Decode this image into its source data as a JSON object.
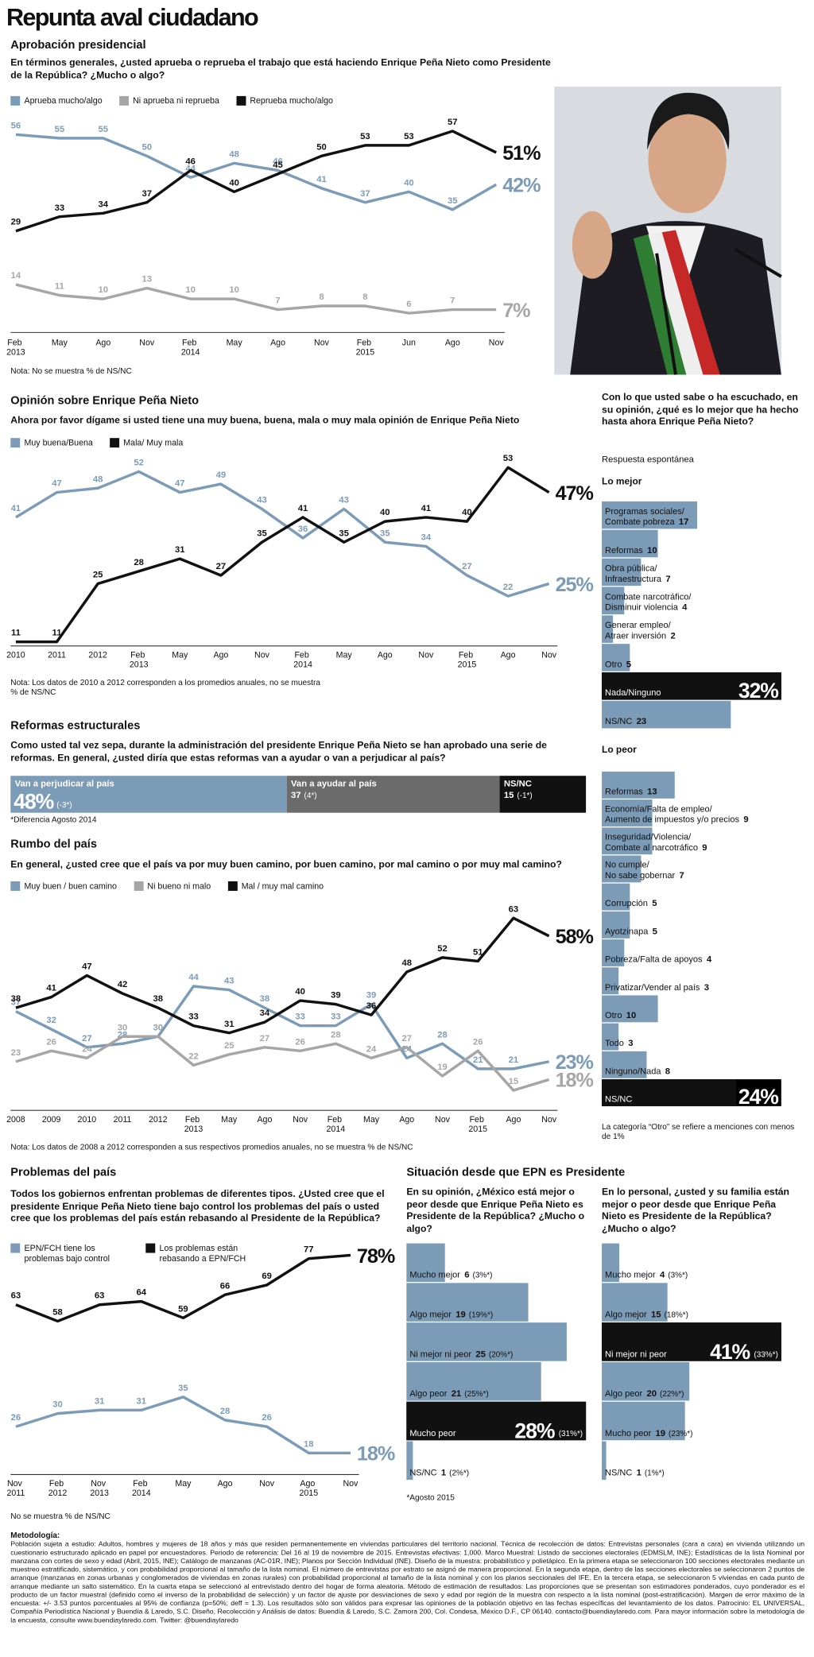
{
  "title": "Repunta aval ciudadano",
  "chart_data": [
    {
      "type": "line",
      "title": "Aprobación presidencial",
      "question": "En términos generales, ¿usted aprueba o reprueba el trabajo que está haciendo Enrique Peña Nieto como Presidente de la República? ¿Mucho o algo?",
      "categories": [
        "Feb 2013",
        "May",
        "Ago",
        "Nov",
        "Feb 2014",
        "May",
        "Ago",
        "Nov",
        "Feb 2015",
        "Jun",
        "Ago",
        "Nov"
      ],
      "series": [
        {
          "name": "Aprueba mucho/algo",
          "color": "#7b9bb7",
          "values": [
            56,
            55,
            55,
            50,
            44,
            48,
            46,
            41,
            37,
            40,
            35,
            42
          ],
          "value_labels": [
            null,
            null,
            null,
            null,
            null,
            null,
            null,
            null,
            null,
            null,
            null,
            "42%"
          ]
        },
        {
          "name": "Ni aprueba ni reprueba",
          "color": "#a6a6a6",
          "values": [
            14,
            11,
            10,
            13,
            10,
            10,
            7,
            8,
            8,
            6,
            7,
            7
          ],
          "value_labels": [
            null,
            null,
            null,
            null,
            null,
            null,
            null,
            null,
            null,
            null,
            null,
            "7%"
          ]
        },
        {
          "name": "Reprueba mucho/algo",
          "color": "#111111",
          "values": [
            29,
            33,
            34,
            37,
            46,
            40,
            45,
            50,
            53,
            53,
            57,
            51
          ],
          "value_labels": [
            null,
            null,
            null,
            null,
            null,
            null,
            null,
            null,
            null,
            null,
            null,
            "51%"
          ]
        }
      ],
      "ylim": [
        0,
        60
      ],
      "note": "Nota: No se muestra % de NS/NC"
    },
    {
      "type": "line",
      "title": "Opinión sobre Enrique Peña Nieto",
      "question": "Ahora por favor dígame si usted tiene una muy buena, buena, mala o muy mala opinión de Enrique Peña Nieto",
      "categories": [
        "2010",
        "2011",
        "2012",
        "Feb 2013",
        "May",
        "Ago",
        "Nov",
        "Feb 2014",
        "May",
        "Ago",
        "Nov",
        "Feb 2015",
        "Ago",
        "Nov"
      ],
      "series": [
        {
          "name": "Muy buena/Buena",
          "color": "#7b9bb7",
          "values": [
            41,
            47,
            48,
            52,
            47,
            49,
            43,
            36,
            43,
            35,
            34,
            27,
            22,
            25
          ],
          "value_labels": [
            null,
            null,
            null,
            null,
            null,
            null,
            null,
            null,
            null,
            null,
            null,
            null,
            null,
            "25%"
          ]
        },
        {
          "name": "Mala/ Muy mala",
          "color": "#111111",
          "values": [
            11,
            11,
            25,
            28,
            31,
            27,
            35,
            41,
            35,
            40,
            41,
            40,
            53,
            47
          ],
          "value_labels": [
            null,
            null,
            null,
            null,
            null,
            null,
            null,
            null,
            null,
            null,
            null,
            null,
            null,
            "47%"
          ]
        }
      ],
      "ylim": [
        10,
        55
      ],
      "note": "Nota: Los datos de 2010 a 2012 corresponden a los promedios anuales, no se muestra % de NS/NC"
    },
    {
      "type": "stacked-bar",
      "title": "Reformas estructurales",
      "question": "Como usted tal vez sepa, durante la administración del presidente Enrique Peña Nieto se han aprobado una serie de reformas. En general, ¿usted diría que estas reformas van a ayudar o van a perjudicar al país?",
      "series": [
        {
          "name": "Van a perjudicar al país",
          "color": "#7b9bb7",
          "values": [
            48
          ],
          "value_labels": [
            "48%"
          ],
          "changes": [
            "(-3*)"
          ]
        },
        {
          "name": "Van a ayudar al país",
          "color": "#6b6b6b",
          "values": [
            37
          ],
          "changes": [
            "(4*)"
          ]
        },
        {
          "name": "NS/NC",
          "color": "#111111",
          "values": [
            15
          ],
          "changes": [
            "(-1*)"
          ]
        }
      ],
      "xlim": [
        0,
        100
      ],
      "note": "*Diferencia Agosto 2014"
    },
    {
      "type": "line",
      "title": "Rumbo del país",
      "question": "En general, ¿usted cree que el país va por muy buen camino, por buen camino, por mal camino o por muy mal camino?",
      "categories": [
        "2008",
        "2009",
        "2010",
        "2011",
        "2012",
        "Feb 2013",
        "May",
        "Ago",
        "Nov",
        "Feb 2014",
        "May",
        "Ago",
        "Nov",
        "Feb 2015",
        "Ago",
        "Nov"
      ],
      "series": [
        {
          "name": "Muy buen / buen camino",
          "color": "#7b9bb7",
          "values": [
            37,
            32,
            27,
            28,
            30,
            44,
            43,
            38,
            33,
            33,
            39,
            24,
            28,
            21,
            21,
            23
          ],
          "value_labels": [
            null,
            null,
            null,
            null,
            null,
            null,
            null,
            null,
            null,
            null,
            null,
            null,
            null,
            null,
            null,
            "23%"
          ]
        },
        {
          "name": "Ni bueno ni malo",
          "color": "#a6a6a6",
          "values": [
            23,
            26,
            24,
            30,
            30,
            22,
            25,
            27,
            26,
            28,
            24,
            27,
            19,
            26,
            15,
            18
          ],
          "value_labels": [
            null,
            null,
            null,
            null,
            null,
            null,
            null,
            null,
            null,
            null,
            null,
            null,
            null,
            null,
            null,
            "18%"
          ]
        },
        {
          "name": "Mal / muy mal camino",
          "color": "#111111",
          "values": [
            38,
            41,
            47,
            42,
            38,
            33,
            31,
            34,
            40,
            39,
            36,
            48,
            52,
            51,
            63,
            58
          ],
          "value_labels": [
            null,
            null,
            null,
            null,
            null,
            null,
            null,
            null,
            null,
            null,
            null,
            null,
            null,
            null,
            null,
            "58%"
          ]
        }
      ],
      "ylim": [
        10,
        65
      ],
      "note": "Nota: Los datos de 2008 a 2012 corresponden a sus respectivos promedios anuales, no se muestra % de NS/NC"
    },
    {
      "type": "line",
      "title": "Problemas del país",
      "question": "Todos los gobiernos enfrentan problemas de diferentes tipos. ¿Usted cree que el presidente Enrique Peña Nieto tiene bajo control los problemas del país o usted cree que los problemas del país están rebasando al Presidente de la República?",
      "categories": [
        "Nov 2011",
        "Feb 2012",
        "Nov 2013",
        "Feb 2014",
        "May",
        "Ago",
        "Nov",
        "Ago 2015",
        "Nov"
      ],
      "series": [
        {
          "name": "EPN/FCH tiene los problemas bajo control",
          "color": "#7b9bb7",
          "values": [
            26,
            30,
            31,
            31,
            35,
            28,
            26,
            18,
            18
          ],
          "value_labels": [
            null,
            null,
            null,
            null,
            null,
            null,
            null,
            null,
            "18%"
          ]
        },
        {
          "name": "Los problemas están rebasando a EPN/FCH",
          "color": "#111111",
          "values": [
            63,
            58,
            63,
            64,
            59,
            66,
            69,
            77,
            78
          ],
          "value_labels": [
            null,
            null,
            null,
            null,
            null,
            null,
            null,
            null,
            "78%"
          ]
        }
      ],
      "ylim": [
        15,
        80
      ],
      "note": "No se muestra % de NS/NC"
    },
    {
      "type": "hbar",
      "question": "Con lo que usted sabe o ha escuchado, en su opinión, ¿qué es lo mejor que ha hecho hasta ahora Enrique Peña Nieto?",
      "subtitle": "Respuesta espontánea",
      "title": "Lo mejor",
      "categories": [
        "Programas sociales/ Combate pobreza",
        "Reformas",
        "Obra pública/ Infraestructura",
        "Combate narcotráfico/ Disminuir violencia",
        "Generar empleo/ Atraer inversión",
        "Otro",
        "Nada/Ninguno",
        "NS/NC"
      ],
      "values": [
        17,
        10,
        7,
        4,
        2,
        5,
        32,
        23
      ],
      "value_labels": [
        null,
        null,
        null,
        null,
        null,
        null,
        "32%",
        null
      ],
      "colors": [
        "#7b9bb7",
        "#7b9bb7",
        "#7b9bb7",
        "#7b9bb7",
        "#7b9bb7",
        "#7b9bb7",
        "#111111",
        "#7b9bb7"
      ],
      "xlim": [
        0,
        32
      ]
    },
    {
      "type": "hbar",
      "title": "Lo peor",
      "categories": [
        "Reformas",
        "Economía/Falta de empleo/ Aumento de impuestos y/o precios",
        "Inseguridad/Violencia/ Combate al narcotráfico",
        "No cumple/ No sabe gobernar",
        "Corrupción",
        "Ayotzinapa",
        "Pobreza/Falta de apoyos",
        "Privatizar/Vender al país",
        "Otro",
        "Todo",
        "Ninguno/Nada",
        "NS/NC"
      ],
      "values": [
        13,
        9,
        9,
        7,
        5,
        5,
        4,
        3,
        10,
        3,
        8,
        24
      ],
      "value_labels": [
        null,
        null,
        null,
        null,
        null,
        null,
        null,
        null,
        null,
        null,
        null,
        "24%"
      ],
      "colors": [
        "#7b9bb7",
        "#7b9bb7",
        "#7b9bb7",
        "#7b9bb7",
        "#7b9bb7",
        "#7b9bb7",
        "#7b9bb7",
        "#7b9bb7",
        "#7b9bb7",
        "#7b9bb7",
        "#7b9bb7",
        "#111111"
      ],
      "xlim": [
        0,
        32
      ],
      "note": "La categoría “Otro” se refiere a menciones con menos de 1%"
    },
    {
      "type": "hbar",
      "supertitle": "Situación desde que EPN es Presidente",
      "question": "En su opinión, ¿México está mejor o peor desde que Enrique Peña Nieto es Presidente de la República? ¿Mucho o algo?",
      "categories": [
        "Mucho mejor",
        "Algo mejor",
        "Ni mejor ni peor",
        "Algo peor",
        "Mucho peor",
        "NS/NC"
      ],
      "values": [
        6,
        19,
        25,
        21,
        28,
        1
      ],
      "value_labels": [
        null,
        null,
        null,
        null,
        "28%",
        null
      ],
      "changes": [
        "(3%*)",
        "(19%*)",
        "(20%*)",
        "(25%*)",
        "(31%*)",
        "(2%*)"
      ],
      "colors": [
        "#7b9bb7",
        "#7b9bb7",
        "#7b9bb7",
        "#7b9bb7",
        "#111111",
        "#7b9bb7"
      ],
      "xlim": [
        0,
        28
      ],
      "note": "*Agosto 2015"
    },
    {
      "type": "hbar",
      "question": "En lo personal, ¿usted y su familia están mejor o peor desde que Enrique Peña Nieto es Presidente de la República? ¿Mucho o algo?",
      "categories": [
        "Mucho mejor",
        "Algo mejor",
        "Ni mejor ni peor",
        "Algo peor",
        "Mucho peor",
        "NS/NC"
      ],
      "values": [
        4,
        15,
        41,
        20,
        19,
        1
      ],
      "value_labels": [
        null,
        null,
        "41%",
        null,
        null,
        null
      ],
      "changes": [
        "(3%*)",
        "(18%*)",
        "(33%*)",
        "(22%*)",
        "(23%*)",
        "(1%*)"
      ],
      "colors": [
        "#7b9bb7",
        "#7b9bb7",
        "#111111",
        "#7b9bb7",
        "#7b9bb7",
        "#7b9bb7"
      ],
      "xlim": [
        0,
        41
      ]
    }
  ],
  "methodology": {
    "heading": "Metodología:",
    "text": "Población sujeta a estudio: Adultos, hombres y mujeres de 18 años y más que residen permanentemente en viviendas particulares del territorio nacional. Técnica de recolección de datos: Entrevistas personales (cara a cara) en vivienda utilizando un cuestionario estructurado aplicado en papel por encuestadores. Periodo de referencia: Del 16 al 19 de noviembre de 2015. Entrevistas efectivas: 1,000. Marco Muestral: Listado de secciones electorales (EDMSLM, INE); Estadísticas de la lista Nominal por manzana con cortes de sexo y edad (Abril, 2015, INE); Catálogo de manzanas (AC-01R, INE); Planos por Sección Individual (INE). Diseño de la muestra: probabilístico y polietápico. En la primera etapa se seleccionaron 100 secciones electorales mediante un muestreo estratificado, sistemático, y con probabilidad proporcional al tamaño de la lista nominal. El número de entrevistas por estrato se asignó de manera proporcional. En la segunda etapa, dentro de las secciones electorales se seleccionaron 2 puntos de arranque (manzanas en zonas urbanas y conglomerados de viviendas en zonas rurales) con probabilidad proporcional al tamaño de la lista nominal y con los planos seccionales del IFE. En la tercera etapa, se seleccionaron 5 viviendas en cada punto de arranque mediante un salto sistemático. En la cuarta etapa se seleccionó al entrevistado dentro del hogar de forma aleatoria. Método de estimación de resultados: Las proporciones que se presentan son estimadores ponderados, cuyo ponderador es el producto de un factor muestral (definido como el inverso de la probabilidad de selección) y un factor de ajuste por desviaciones de sexo y edad por región de la muestra con respecto a la lista nominal (post-estratificación). Margen de error máximo de la encuesta: +/- 3.53 puntos porcentuales al 95% de confianza (p=50%; deff = 1.3). Los resultados sólo son válidos para expresar las opiniones de la población objetivo en las fechas específicas del levantamiento de los datos. Patrocinio: EL UNIVERSAL, Compañía Periodística Nacional y Buendía & Laredo, S.C. Diseño, Recolección y Análisis de datos: Buendía & Laredo, S.C. Zamora 200, Col. Condesa, México D.F., CP 06140. contacto@buendiaylaredo.com. Para mayor información sobre la metodología de la encuesta, consulte www.buendiaylaredo.com. Twitter: @buendiaylaredo"
  }
}
